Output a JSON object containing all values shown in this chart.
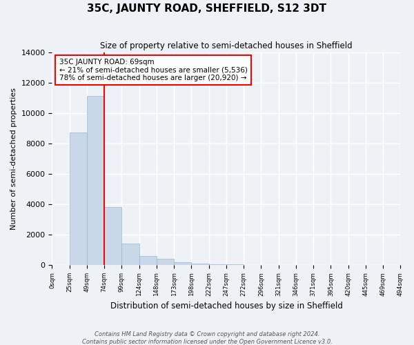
{
  "title": "35C, JAUNTY ROAD, SHEFFIELD, S12 3DT",
  "subtitle": "Size of property relative to semi-detached houses in Sheffield",
  "xlabel": "Distribution of semi-detached houses by size in Sheffield",
  "ylabel": "Number of semi-detached properties",
  "footer_line1": "Contains HM Land Registry data © Crown copyright and database right 2024.",
  "footer_line2": "Contains public sector information licensed under the Open Government Licence v3.0.",
  "property_size": 69,
  "property_label": "35C JAUNTY ROAD: 69sqm",
  "pct_smaller": 21,
  "pct_larger": 78,
  "n_smaller": 5536,
  "n_larger": 20920,
  "tick_labels": [
    "0sqm",
    "25sqm",
    "49sqm",
    "74sqm",
    "99sqm",
    "124sqm",
    "148sqm",
    "173sqm",
    "198sqm",
    "222sqm",
    "247sqm",
    "272sqm",
    "296sqm",
    "321sqm",
    "346sqm",
    "371sqm",
    "395sqm",
    "420sqm",
    "445sqm",
    "469sqm",
    "494sqm"
  ],
  "bar_values": [
    0,
    8700,
    11100,
    3800,
    1400,
    600,
    400,
    200,
    100,
    50,
    30,
    15,
    8,
    4,
    2,
    1,
    1,
    0,
    0,
    0
  ],
  "bar_color": "#c8d8e8",
  "bar_edge_color": "#9ab8cc",
  "background_color": "#eef2f7",
  "grid_color": "#ffffff",
  "ylim": [
    0,
    14000
  ],
  "yticks": [
    0,
    2000,
    4000,
    6000,
    8000,
    10000,
    12000,
    14000
  ],
  "red_line_x": 2.5
}
